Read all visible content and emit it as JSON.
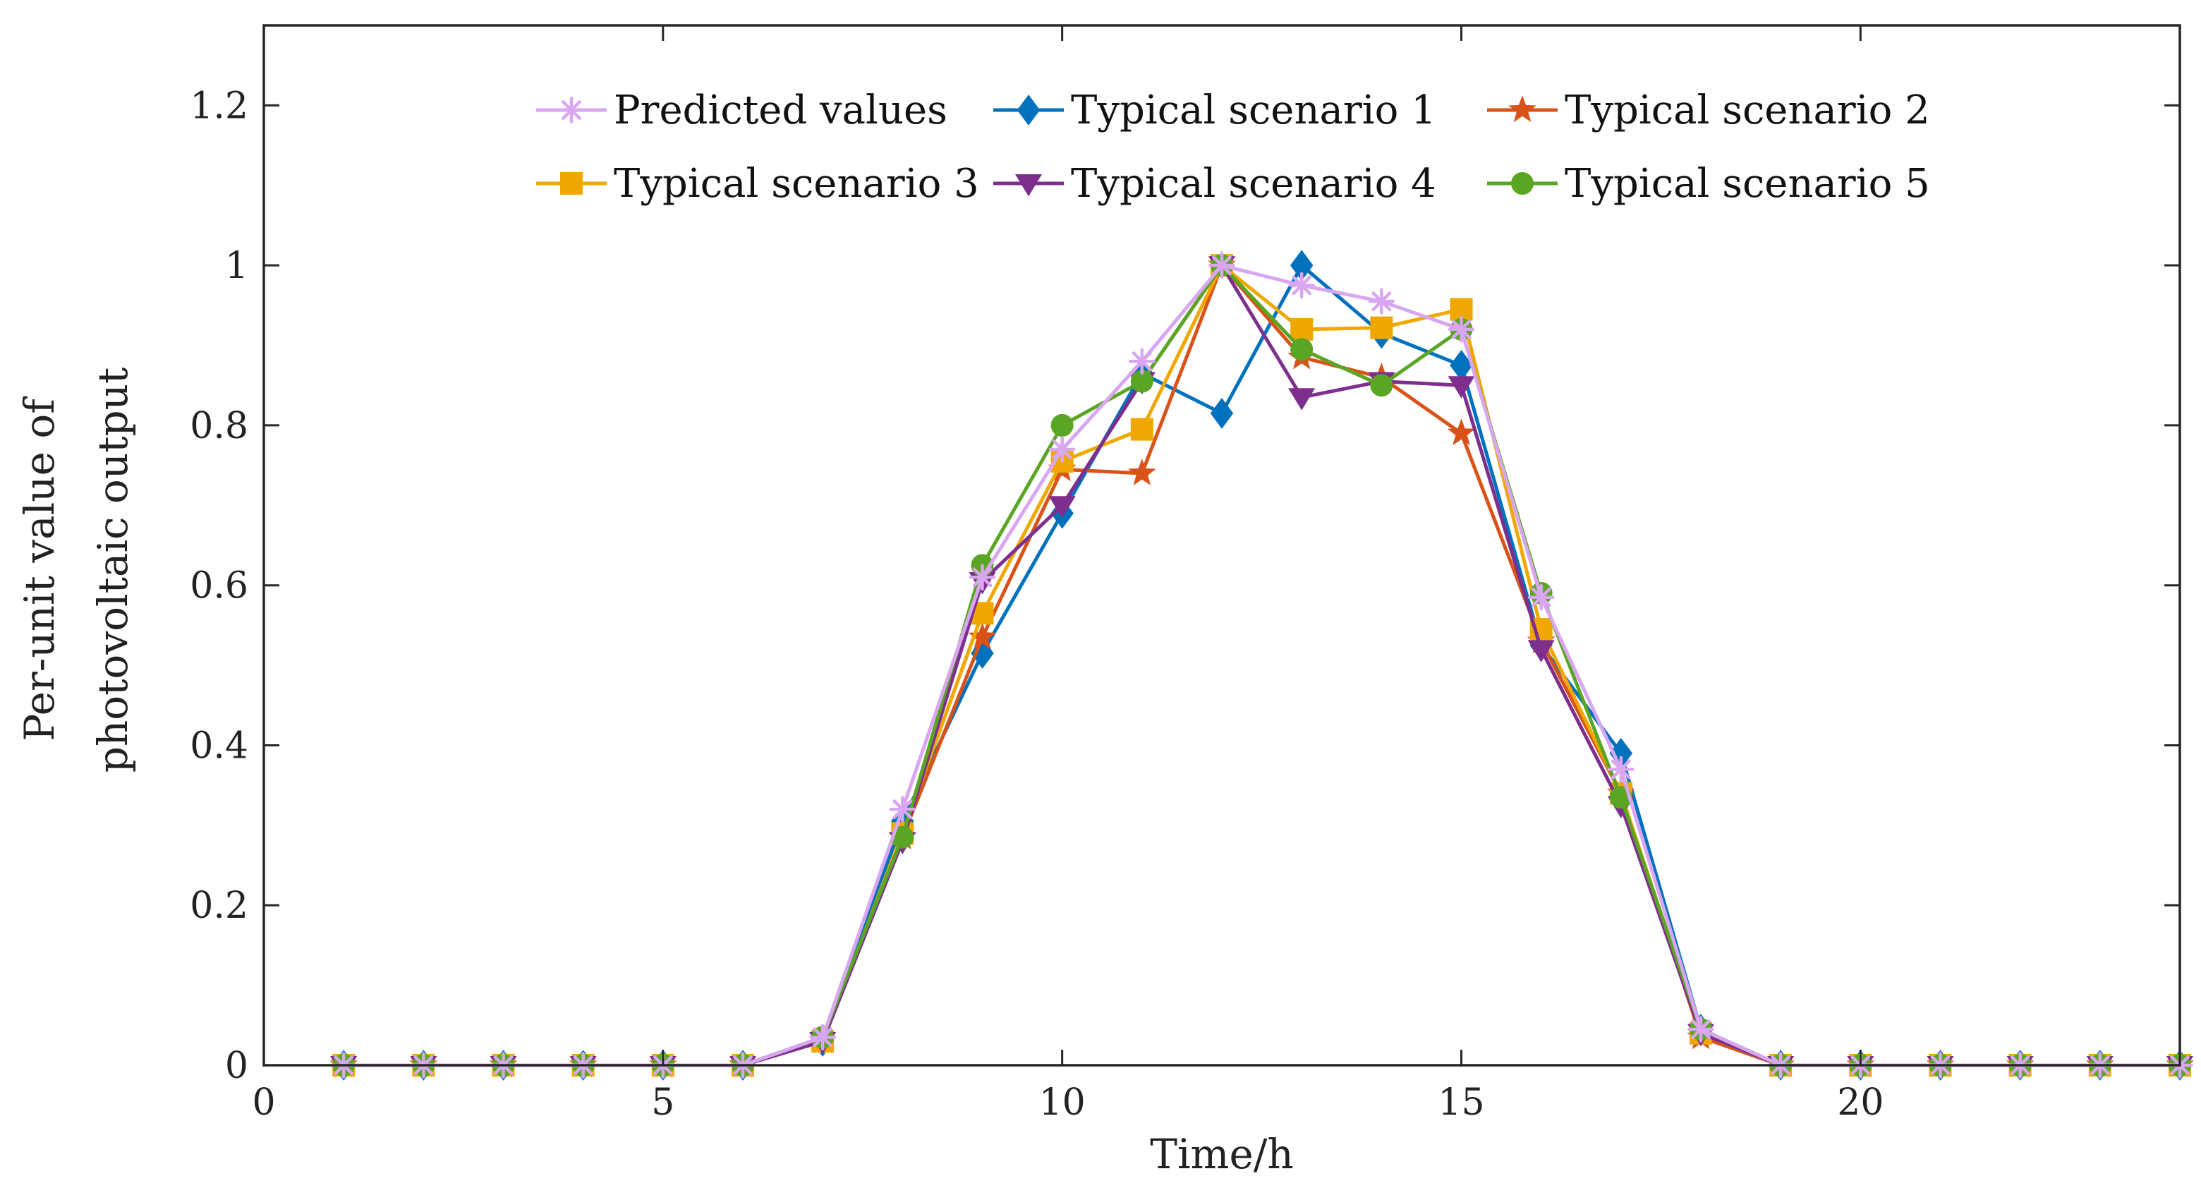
{
  "chart_data": {
    "type": "line",
    "title": "",
    "xlabel": "Time/h",
    "ylabel_lines": [
      "Per-unit value of",
      "photovoltaic output"
    ],
    "xlim": [
      0,
      24
    ],
    "ylim": [
      0,
      1.3
    ],
    "xticks": [
      0,
      5,
      10,
      15,
      20
    ],
    "yticks": [
      0,
      0.2,
      0.4,
      0.6,
      0.8,
      1,
      1.2
    ],
    "xtick_labels": [
      "0",
      "5",
      "10",
      "15",
      "20"
    ],
    "ytick_labels": [
      "0",
      "0.2",
      "0.4",
      "0.6",
      "0.8",
      "1",
      "1.2"
    ],
    "grid": false,
    "legend_position": "top",
    "x": [
      1,
      2,
      3,
      4,
      5,
      6,
      7,
      8,
      9,
      10,
      11,
      12,
      13,
      14,
      15,
      16,
      17,
      18,
      19,
      20,
      21,
      22,
      23,
      24
    ],
    "series": [
      {
        "name": "Predicted values",
        "color": "#d9a6f2",
        "marker": "asterisk",
        "values": [
          0,
          0,
          0,
          0,
          0,
          0,
          0.035,
          0.32,
          0.61,
          0.77,
          0.88,
          1.0,
          0.975,
          0.955,
          0.92,
          0.585,
          0.37,
          0.045,
          0,
          0,
          0,
          0,
          0,
          0
        ]
      },
      {
        "name": "Typical scenario 1",
        "color": "#0072bd",
        "marker": "diamond",
        "values": [
          0,
          0,
          0,
          0,
          0,
          0,
          0.03,
          0.305,
          0.515,
          0.69,
          0.865,
          0.815,
          1.0,
          0.915,
          0.875,
          0.525,
          0.39,
          0.045,
          0,
          0,
          0,
          0,
          0,
          0
        ]
      },
      {
        "name": "Typical scenario 2",
        "color": "#d95319",
        "marker": "star",
        "values": [
          0,
          0,
          0,
          0,
          0,
          0,
          0.03,
          0.285,
          0.535,
          0.745,
          0.74,
          1.0,
          0.885,
          0.86,
          0.79,
          0.53,
          0.34,
          0.035,
          0,
          0,
          0,
          0,
          0,
          0
        ]
      },
      {
        "name": "Typical scenario 3",
        "color": "#f0a800",
        "marker": "square",
        "values": [
          0,
          0,
          0,
          0,
          0,
          0,
          0.03,
          0.29,
          0.565,
          0.755,
          0.795,
          1.0,
          0.92,
          0.922,
          0.945,
          0.545,
          0.34,
          0.04,
          0,
          0,
          0,
          0,
          0,
          0
        ]
      },
      {
        "name": "Typical scenario 4",
        "color": "#7e2f8e",
        "marker": "triangle-down",
        "values": [
          0,
          0,
          0,
          0,
          0,
          0,
          0.03,
          0.28,
          0.605,
          0.7,
          0.855,
          1.0,
          0.835,
          0.855,
          0.85,
          0.52,
          0.325,
          0.04,
          0,
          0,
          0,
          0,
          0,
          0
        ]
      },
      {
        "name": "Typical scenario 5",
        "color": "#5aa624",
        "marker": "circle",
        "values": [
          0,
          0,
          0,
          0,
          0,
          0,
          0.035,
          0.285,
          0.625,
          0.8,
          0.855,
          1.0,
          0.895,
          0.85,
          0.92,
          0.59,
          0.335,
          0.045,
          0,
          0,
          0,
          0,
          0,
          0
        ]
      }
    ]
  }
}
